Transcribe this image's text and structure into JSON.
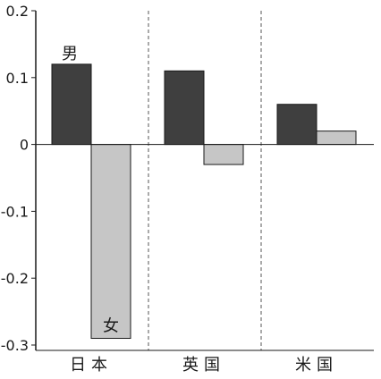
{
  "chart_data": {
    "type": "bar",
    "title": "",
    "xlabel": "",
    "ylabel": "",
    "categories": [
      "日本",
      "英国",
      "米国"
    ],
    "series": [
      {
        "name": "男",
        "values": [
          0.12,
          0.11,
          0.06
        ],
        "color": "#3f3f3f"
      },
      {
        "name": "女",
        "values": [
          -0.29,
          -0.03,
          0.02
        ],
        "color": "#c6c6c6"
      }
    ],
    "ylim": [
      -0.3,
      0.2
    ],
    "yticks": [
      0.2,
      0.1,
      0,
      -0.1,
      -0.2,
      -0.3
    ],
    "ytick_labels": [
      "0.2",
      "0.1",
      "0",
      "-0.1",
      "-0.2",
      "-0.3"
    ],
    "grid": false,
    "legend": "none",
    "category_separators": "dashed",
    "annotations": [
      "男",
      "女"
    ]
  }
}
